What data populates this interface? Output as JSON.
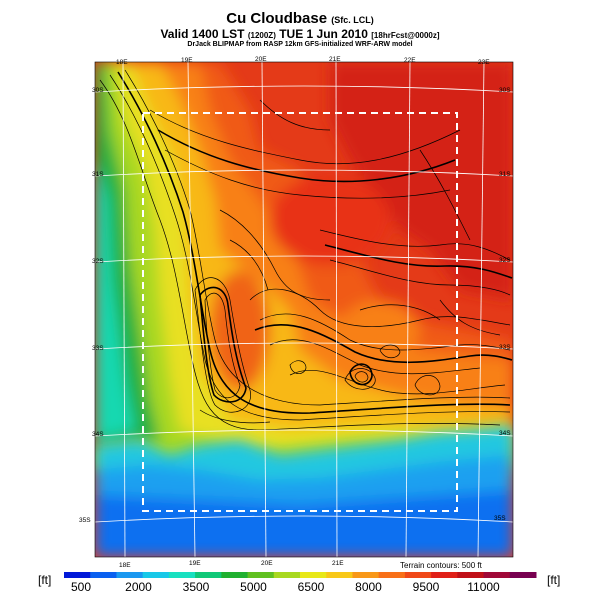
{
  "title": {
    "main": "Cu Cloudbase",
    "sub": "(Sfc. LCL)",
    "valid": "Valid 1400 LST",
    "valid_code": "(1200Z)",
    "valid_date": "TUE 1 Jun 2010",
    "forecast": "[18hrFcst@0000z]",
    "credit": "DrJack BLIPMAP from RASP 12km GFS-initialized WRF-ARW model"
  },
  "map": {
    "lon_labels_top": [
      "18E",
      "19E",
      "20E",
      "21E",
      "22E",
      "23E"
    ],
    "lon_labels_bottom": [
      "18E",
      "19E",
      "20E",
      "21E"
    ],
    "lat_labels_left": [
      "30S",
      "31S",
      "32S",
      "33S",
      "34S",
      "35S"
    ],
    "lat_labels_right": [
      "30S",
      "31S",
      "32S",
      "33S",
      "34S",
      "35S"
    ],
    "terrain_note": "Terrain contours: 500 ft"
  },
  "colorbar": {
    "unit_left": "[ft]",
    "unit_right": "[ft]",
    "tick_labels": [
      "500",
      "2000",
      "3500",
      "5000",
      "6500",
      "8000",
      "9500",
      "11000"
    ],
    "colors": [
      "#0018d8",
      "#0a60f0",
      "#1a98f0",
      "#18c8e8",
      "#18e0c0",
      "#10c878",
      "#20b030",
      "#60c020",
      "#a8d820",
      "#e8e818",
      "#f8c818",
      "#f89818",
      "#f87018",
      "#f04818",
      "#e02018",
      "#c01018",
      "#a00838",
      "#780050"
    ]
  }
}
